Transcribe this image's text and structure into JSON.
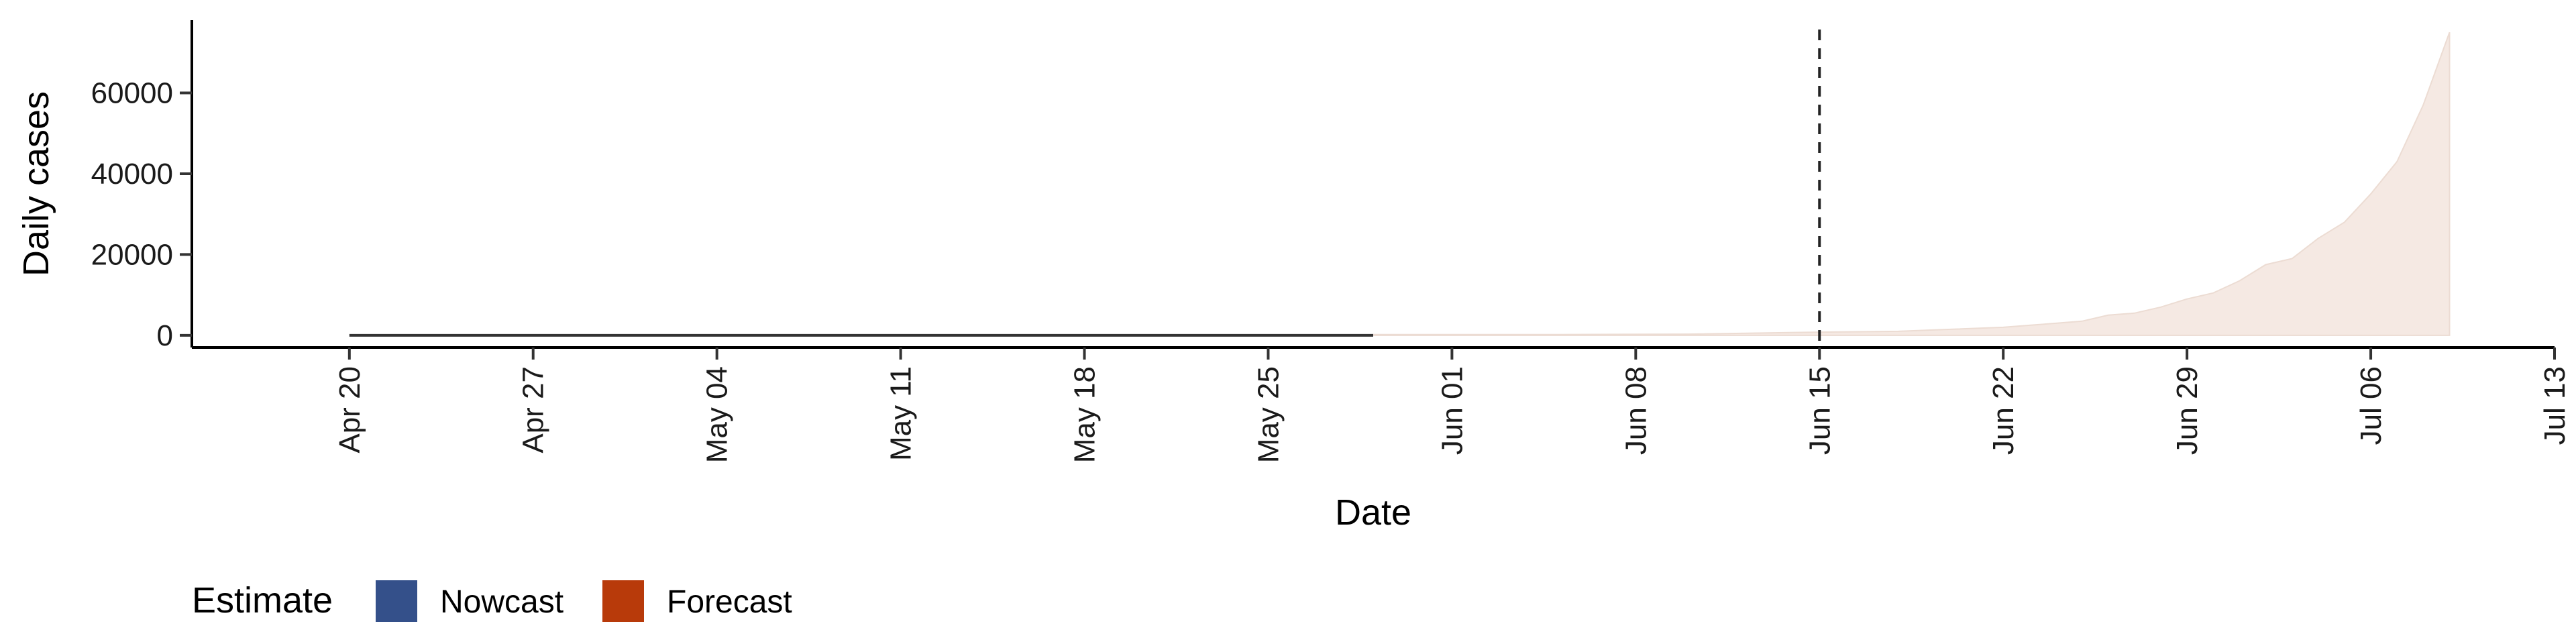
{
  "chart_data": {
    "type": "area",
    "title": "",
    "xlabel": "Date",
    "ylabel": "Daily cases",
    "x_ticks": [
      "Apr 20",
      "Apr 27",
      "May 04",
      "May 11",
      "May 18",
      "May 25",
      "Jun 01",
      "Jun 08",
      "Jun 15",
      "Jun 22",
      "Jun 29",
      "Jul 06",
      "Jul 13"
    ],
    "y_ticks": [
      "0",
      "20000",
      "40000",
      "60000"
    ],
    "xlim": [
      "2020-04-14",
      "2020-07-13"
    ],
    "ylim": [
      -3000,
      78000
    ],
    "forecast_start": "2020-06-15",
    "grid": false,
    "legend": {
      "title": "Estimate",
      "position": "bottom-left",
      "entries": [
        {
          "label": "Nowcast",
          "color": "#34508a"
        },
        {
          "label": "Forecast",
          "color": "#b83a0a"
        }
      ]
    },
    "colors": {
      "line": "#333333",
      "band_fill": "#f5e9e3",
      "band_stroke": "#ecdcd3",
      "forecast_line": "#222222"
    },
    "series": [
      {
        "x": [
          "2020-04-20",
          "2020-05-29"
        ],
        "y": [
          0,
          0
        ]
      },
      {
        "x": [
          "2020-05-29",
          "2020-06-05",
          "2020-06-10",
          "2020-06-15",
          "2020-06-18",
          "2020-06-20",
          "2020-06-22",
          "2020-06-23",
          "2020-06-24",
          "2020-06-25",
          "2020-06-26",
          "2020-06-27",
          "2020-06-28",
          "2020-06-29",
          "2020-06-30",
          "2020-07-01",
          "2020-07-02",
          "2020-07-03",
          "2020-07-04",
          "2020-07-05",
          "2020-07-06",
          "2020-07-07",
          "2020-07-08",
          "2020-07-09",
          "2020-07-10",
          "2020-07-11",
          "2020-07-12",
          "2020-07-13"
        ],
        "lower": [
          0,
          0,
          0,
          0,
          0,
          0,
          0,
          0,
          0,
          0,
          0,
          0,
          0,
          0,
          0,
          0,
          0,
          0,
          0,
          0,
          0,
          0,
          0,
          0,
          0,
          0,
          0,
          0
        ],
        "upper": [
          200,
          200,
          300,
          800,
          1000,
          1500,
          2000,
          2500,
          3000,
          3500,
          5000,
          5500,
          7000,
          9000,
          10500,
          13500,
          17500,
          19000,
          24000,
          28000,
          35000,
          43000,
          57000,
          75000,
          null,
          null,
          null,
          null
        ]
      }
    ]
  }
}
